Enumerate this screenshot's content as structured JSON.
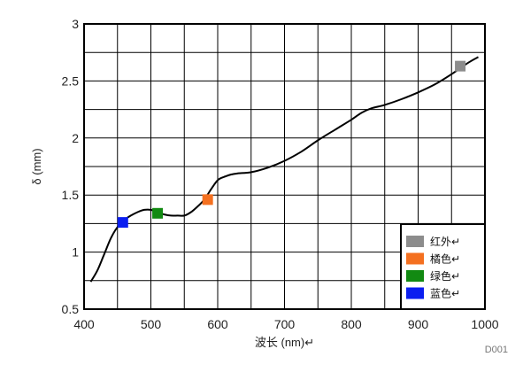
{
  "chart_data": {
    "type": "line",
    "title": "",
    "xlabel": "波长 (nm)↵",
    "ylabel": "δ (mm)",
    "xlim": [
      400,
      1000
    ],
    "ylim": [
      0.5,
      3
    ],
    "xticks": [
      400,
      500,
      600,
      700,
      800,
      900,
      1000
    ],
    "yticks": [
      0.5,
      1,
      1.5,
      2,
      2.5,
      3
    ],
    "ytick_labels": [
      "0.5",
      "1",
      "1.5",
      "2",
      "2.5",
      "3"
    ],
    "grid": true,
    "legend_position": "bottom-right",
    "corner_label": "D001",
    "series": [
      {
        "color": "#000000",
        "x": [
          410,
          420,
          430,
          440,
          450,
          460,
          470,
          480,
          490,
          500,
          510,
          520,
          530,
          540,
          550,
          560,
          570,
          580,
          590,
          600,
          610,
          620,
          630,
          650,
          675,
          700,
          725,
          750,
          775,
          800,
          815,
          830,
          850,
          875,
          900,
          925,
          950,
          975,
          990
        ],
        "y": [
          0.74,
          0.84,
          0.98,
          1.12,
          1.22,
          1.28,
          1.32,
          1.35,
          1.37,
          1.37,
          1.35,
          1.33,
          1.32,
          1.32,
          1.32,
          1.35,
          1.4,
          1.46,
          1.55,
          1.63,
          1.66,
          1.68,
          1.69,
          1.7,
          1.74,
          1.8,
          1.88,
          1.98,
          2.07,
          2.16,
          2.22,
          2.26,
          2.29,
          2.34,
          2.4,
          2.47,
          2.56,
          2.66,
          2.71
        ]
      }
    ],
    "markers": [
      {
        "name": "红外↵",
        "x": 963,
        "y": 2.63,
        "color": "#8c8c8c"
      },
      {
        "name": "橘色↵",
        "x": 585,
        "y": 1.46,
        "color": "#f47020"
      },
      {
        "name": "绿色↵",
        "x": 510,
        "y": 1.34,
        "color": "#128a12"
      },
      {
        "name": "蓝色↵",
        "x": 458,
        "y": 1.26,
        "color": "#0b1ef0"
      }
    ]
  }
}
